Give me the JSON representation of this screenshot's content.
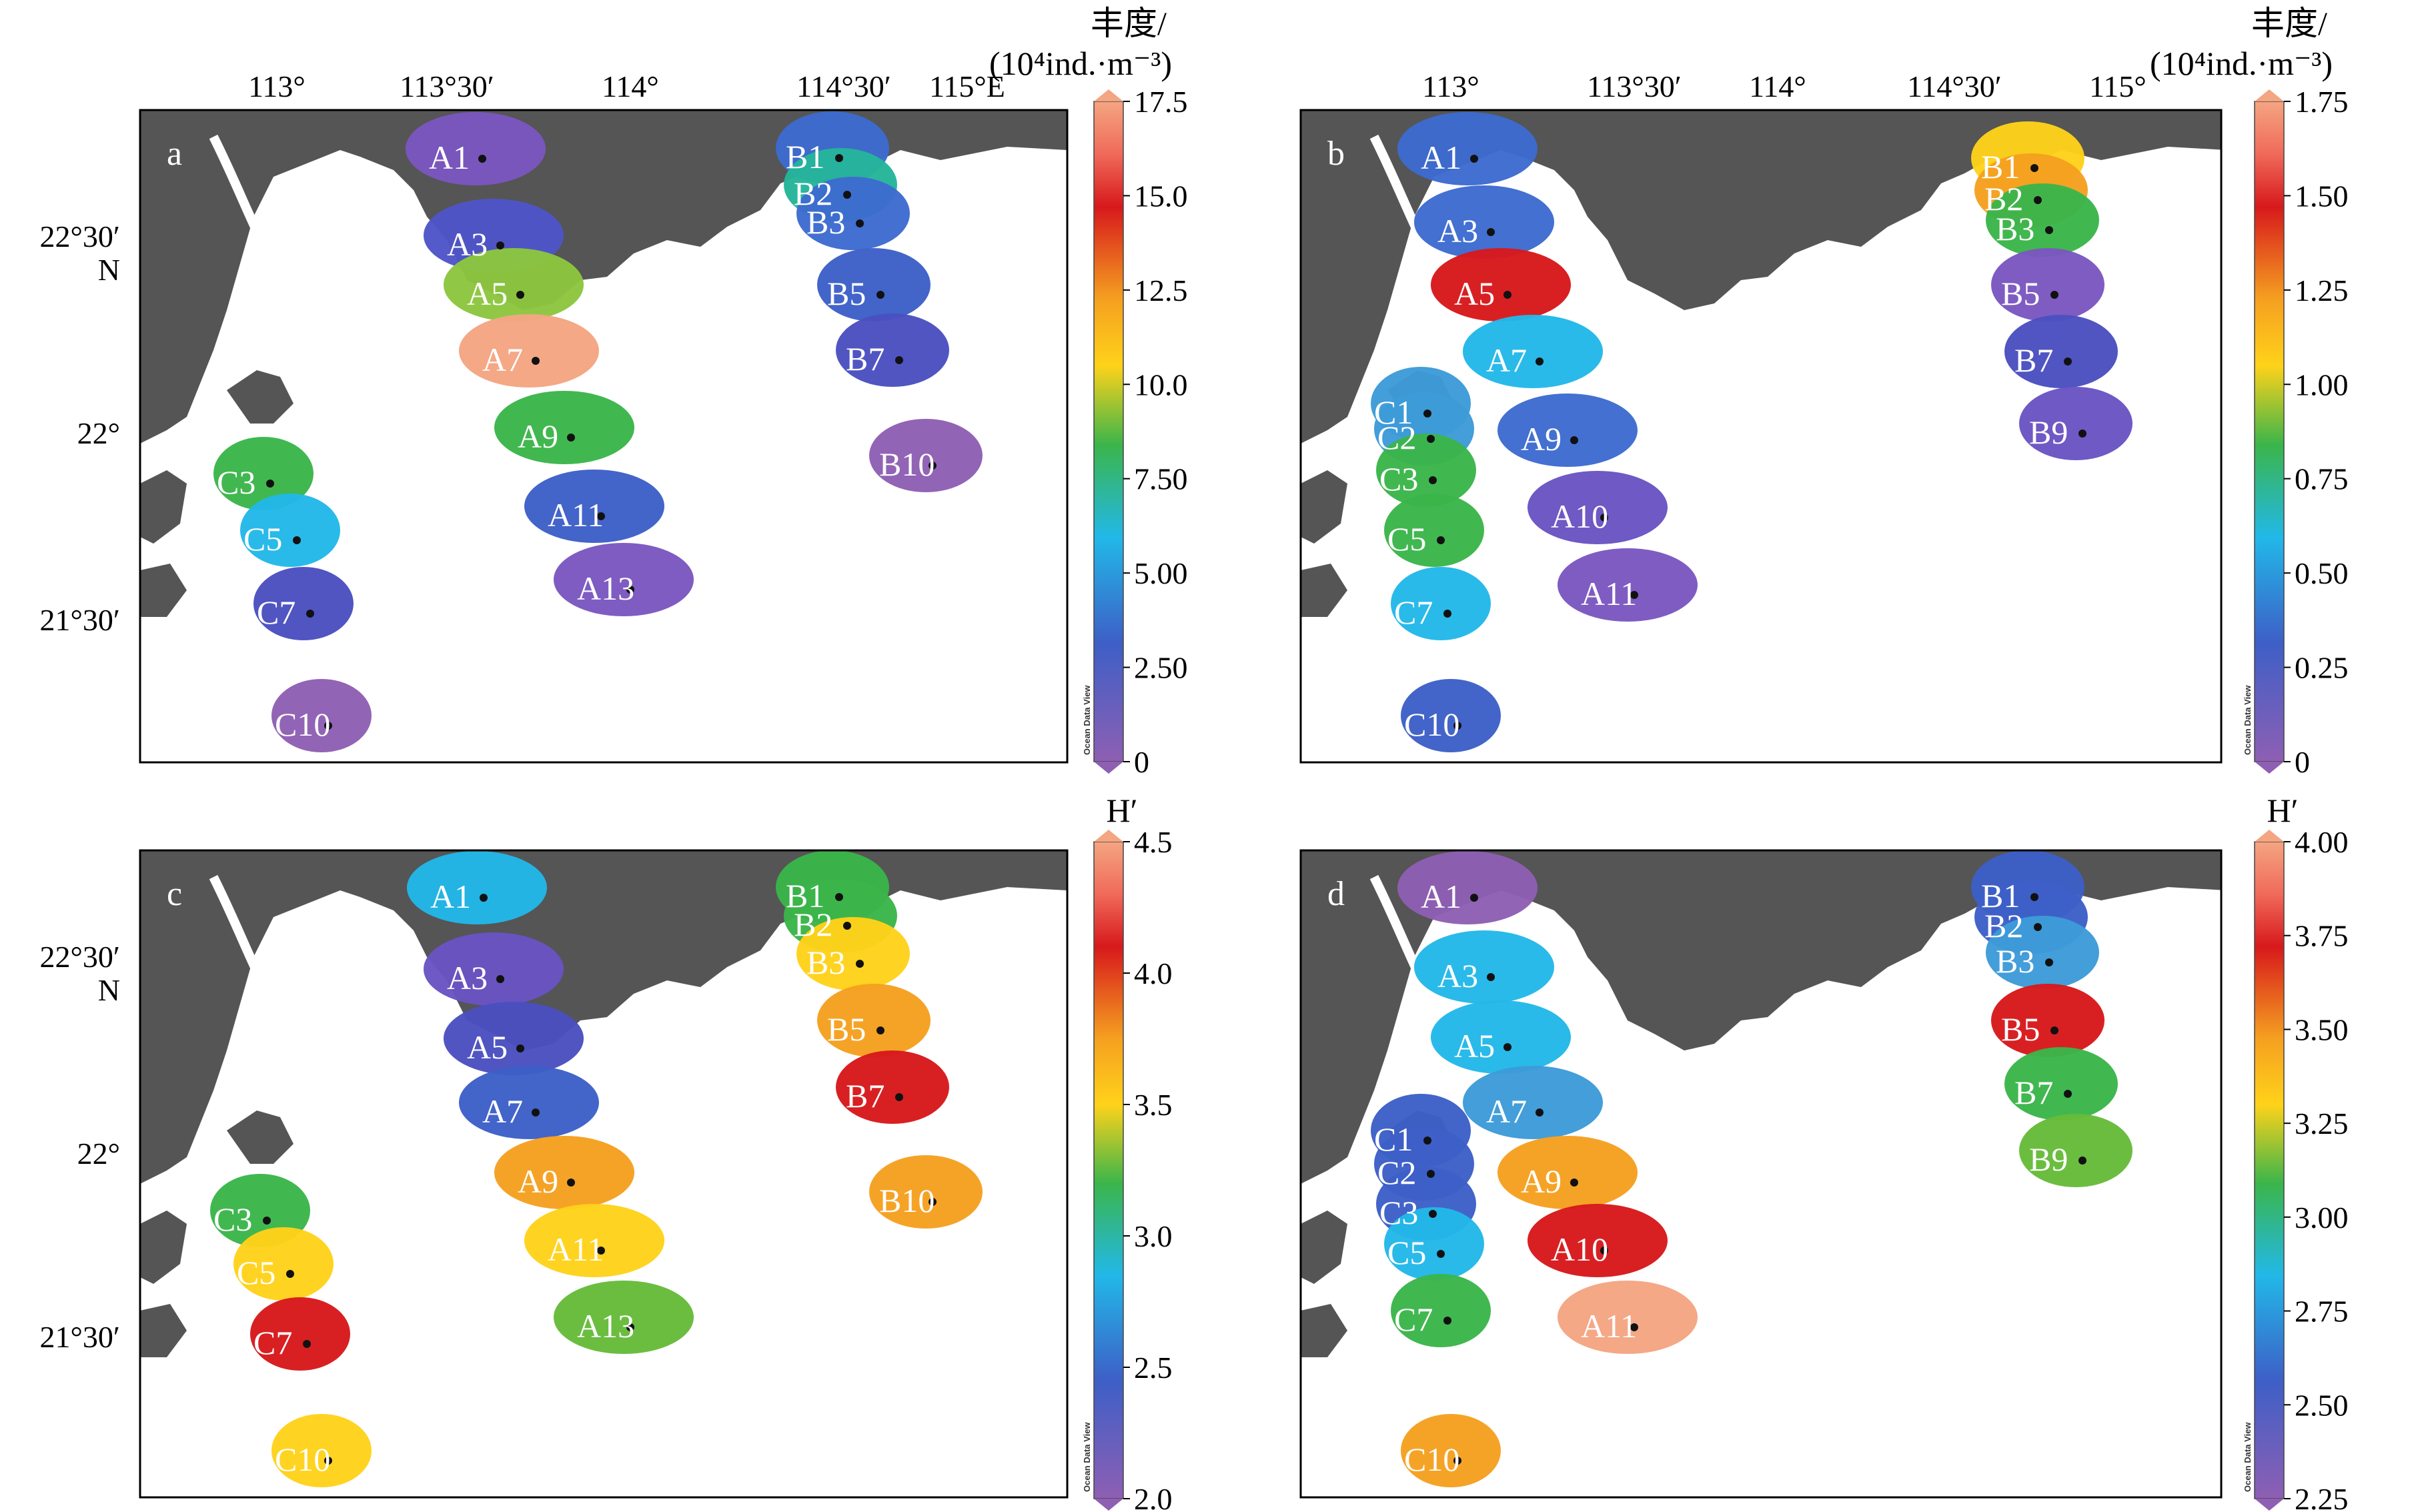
{
  "panels": [
    {
      "id": "a",
      "letter": "a",
      "lon_labels": [
        "113°",
        "113°30′",
        "114°",
        "114°30′",
        "115°E"
      ],
      "lat_labels": [
        "22°30′",
        "N",
        "22°",
        "21°30′"
      ],
      "colorbar": {
        "title_line1": "丰度/",
        "title_line2": "(10⁴ind.·m⁻³)",
        "ticks": [
          "17.5",
          "15.0",
          "12.5",
          "10.0",
          "7.50",
          "5.00",
          "2.50",
          "0"
        ],
        "watermark": "Ocean Data View"
      },
      "stations": [
        "A1",
        "A3",
        "A5",
        "A7",
        "A9",
        "A11",
        "A13",
        "B1",
        "B2",
        "B3",
        "B5",
        "B7",
        "B10",
        "C3",
        "C5",
        "C7",
        "C10"
      ]
    },
    {
      "id": "b",
      "letter": "b",
      "lon_labels": [
        "113°",
        "113°30′",
        "114°",
        "114°30′",
        "115°"
      ],
      "lat_labels": [],
      "colorbar": {
        "title_line1": "丰度/",
        "title_line2": "(10⁴ind.·m⁻³)",
        "ticks": [
          "1.75",
          "1.50",
          "1.25",
          "1.00",
          "0.75",
          "0.50",
          "0.25",
          "0"
        ],
        "watermark": "Ocean Data View"
      },
      "stations": [
        "A1",
        "A3",
        "A5",
        "A7",
        "A9",
        "A10",
        "A11",
        "B1",
        "B2",
        "B3",
        "B5",
        "B7",
        "B9",
        "C1",
        "C2",
        "C3",
        "C5",
        "C7",
        "C10"
      ]
    },
    {
      "id": "c",
      "letter": "c",
      "lon_labels": [],
      "lat_labels": [
        "22°30′",
        "N",
        "22°",
        "21°30′"
      ],
      "colorbar": {
        "title_line1": "H′",
        "title_line2": "",
        "ticks": [
          "4.5",
          "4.0",
          "3.5",
          "3.0",
          "2.5",
          "2.0"
        ],
        "watermark": "Ocean Data View"
      },
      "stations": [
        "A1",
        "A3",
        "A5",
        "A7",
        "A9",
        "A11",
        "A13",
        "B1",
        "B2",
        "B3",
        "B5",
        "B7",
        "B10",
        "C3",
        "C5",
        "C7",
        "C10"
      ]
    },
    {
      "id": "d",
      "letter": "d",
      "lon_labels": [],
      "lat_labels": [],
      "colorbar": {
        "title_line1": "H′",
        "title_line2": "",
        "ticks": [
          "4.00",
          "3.75",
          "3.50",
          "3.25",
          "3.00",
          "2.75",
          "2.50",
          "2.25"
        ],
        "watermark": "Ocean Data View"
      },
      "stations": [
        "A1",
        "A3",
        "A5",
        "A7",
        "A9",
        "A10",
        "A11",
        "B1",
        "B2",
        "B3",
        "B5",
        "B7",
        "B9",
        "C1",
        "C2",
        "C3",
        "C5",
        "C7",
        "C10"
      ]
    }
  ],
  "colors": {
    "land": "#555555",
    "frame": "#000000",
    "station_dot": "#111111",
    "label": "#ffffff"
  }
}
